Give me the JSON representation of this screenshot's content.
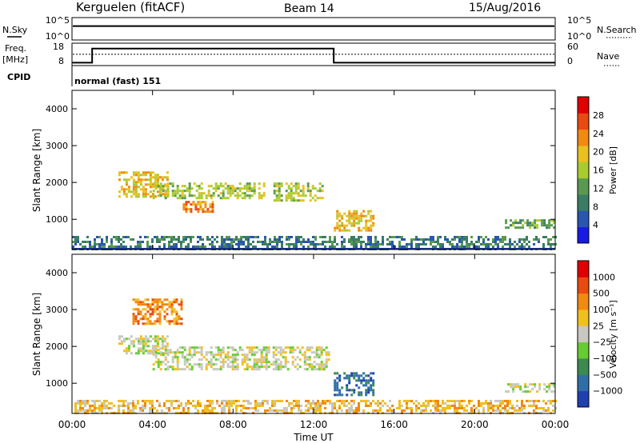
{
  "header": {
    "station": "Kerguelen (fitACF)",
    "beam": "Beam 14",
    "date": "15/Aug/2016"
  },
  "status_panels": {
    "nsky": {
      "label": "N.Sky",
      "ticks": [
        "10^5",
        "10^0"
      ],
      "value_level": 0.8
    },
    "nsearch": {
      "label": "N.Search",
      "ticks": [
        "10^5",
        "10^0"
      ]
    },
    "freq": {
      "label_line1": "Freq.",
      "label_line2": "[MHz]",
      "ticks": [
        "18",
        "8"
      ],
      "steps": [
        [
          0,
          9.3
        ],
        [
          1,
          15.6
        ],
        [
          13,
          9.3
        ],
        [
          24,
          9.3
        ]
      ]
    },
    "nave": {
      "label": "Nave",
      "ticks": [
        "60",
        "0"
      ],
      "value_level": 0.72
    },
    "cpid": {
      "label": "CPID",
      "value": "normal (fast) 151"
    }
  },
  "chart_data": [
    {
      "type": "heatmap",
      "title": "",
      "xlabel": "",
      "ylabel": "Slant Range [km]",
      "xlim": [
        0,
        24
      ],
      "ylim": [
        180,
        4500
      ],
      "yticks": [
        "1000",
        "2000",
        "3000",
        "4000"
      ],
      "colorbar": {
        "label": "Power [dB]",
        "ticks": [
          "28",
          "24",
          "20",
          "16",
          "12",
          "8",
          "4"
        ]
      },
      "colors": [
        "#1a1ae6",
        "#2a56b0",
        "#3b7d64",
        "#5a9a50",
        "#a8cc30",
        "#e8c020",
        "#f08a10",
        "#e84a10",
        "#e00000"
      ],
      "regions": [
        {
          "t": [
            2.3,
            4.8
          ],
          "r": [
            1600,
            2300
          ],
          "value": 18,
          "note": "band"
        },
        {
          "t": [
            4.0,
            9.5
          ],
          "r": [
            1550,
            2000
          ],
          "value": 16
        },
        {
          "t": [
            5.5,
            7.0
          ],
          "r": [
            1200,
            1500
          ],
          "value": 22
        },
        {
          "t": [
            10.0,
            12.5
          ],
          "r": [
            1500,
            2000
          ],
          "value": 14
        },
        {
          "t": [
            13.0,
            15.0
          ],
          "r": [
            700,
            1250
          ],
          "value": 18
        },
        {
          "t": [
            21.5,
            23.9
          ],
          "r": [
            800,
            1000
          ],
          "value": 10
        },
        {
          "t": [
            0,
            24
          ],
          "r": [
            180,
            550
          ],
          "value": 6
        }
      ]
    },
    {
      "type": "heatmap",
      "title": "",
      "xlabel": "Time UT",
      "ylabel": "Slant Range [km]",
      "xlim": [
        0,
        24
      ],
      "ylim": [
        180,
        4500
      ],
      "xticks": [
        "00:00",
        "04:00",
        "08:00",
        "12:00",
        "16:00",
        "20:00",
        "00:00"
      ],
      "yticks": [
        "1000",
        "2000",
        "3000",
        "4000"
      ],
      "colorbar": {
        "label": "Velocity [m s⁻¹]",
        "ticks": [
          "1000",
          "500",
          "100",
          "25",
          "−25",
          "−100",
          "−500",
          "−1000"
        ]
      },
      "colors": [
        "#2040b0",
        "#2f6fa8",
        "#3d8a50",
        "#66cc33",
        "#c8c8c0",
        "#f0c020",
        "#f08a10",
        "#e84a10",
        "#e00000"
      ],
      "regions": [
        {
          "t": [
            2.3,
            4.8
          ],
          "r": [
            1800,
            2300
          ],
          "value": 0
        },
        {
          "t": [
            4.0,
            12.8
          ],
          "r": [
            1400,
            2000
          ],
          "value": 0
        },
        {
          "t": [
            3.0,
            5.5
          ],
          "r": [
            2600,
            3300
          ],
          "value": -400
        },
        {
          "t": [
            13.0,
            15.0
          ],
          "r": [
            700,
            1300
          ],
          "value": 150
        },
        {
          "t": [
            21.5,
            23.9
          ],
          "r": [
            800,
            1000
          ],
          "value": 0
        },
        {
          "t": [
            0,
            24
          ],
          "r": [
            180,
            550
          ],
          "value": -60
        }
      ]
    }
  ]
}
